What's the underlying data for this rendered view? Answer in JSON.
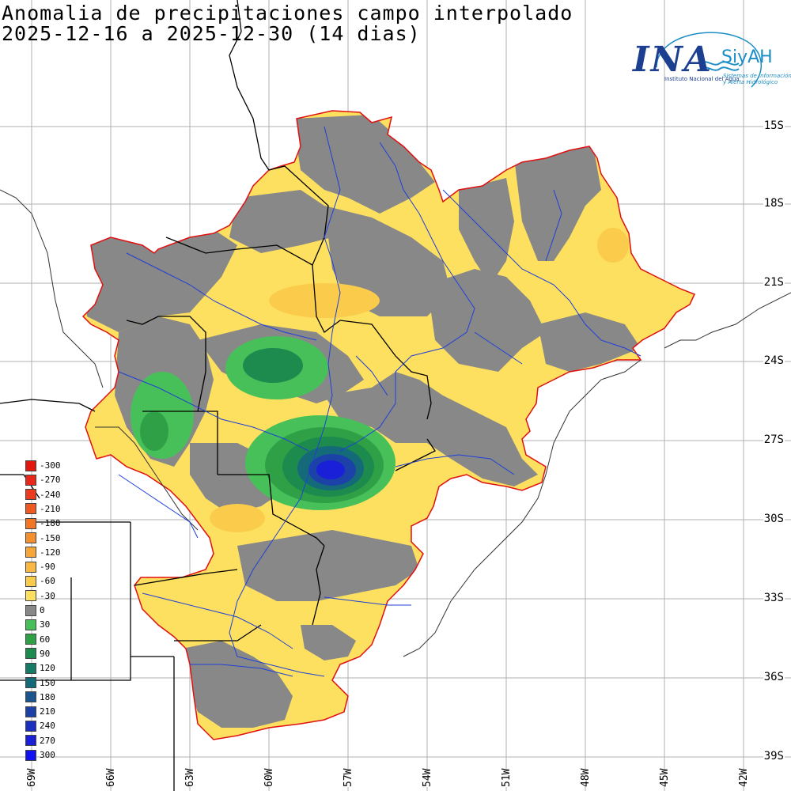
{
  "title": {
    "line1": "Anomalia de precipitaciones campo interpolado",
    "line2": "2025-12-16 a 2025-12-30 (14 dias)"
  },
  "logo": {
    "ina": "INA",
    "siyah": "SiyAH",
    "subtitle": "Instituto Nacional del Agua",
    "subtitle2": "Sistemas de Información y Alerta Hidrológico",
    "accent_color": "#1c3f8f",
    "wave_color": "#1b8ec4"
  },
  "latitude_labels": [
    "15S",
    "18S",
    "21S",
    "24S",
    "27S",
    "30S",
    "33S",
    "36S",
    "39S"
  ],
  "longitude_labels": [
    "69W",
    "66W",
    "63W",
    "60W",
    "57W",
    "54W",
    "51W",
    "48W",
    "45W",
    "42W"
  ],
  "legend": [
    {
      "label": "-300",
      "color": "#e3160f"
    },
    {
      "label": "-270",
      "color": "#e8261a"
    },
    {
      "label": "-240",
      "color": "#ec3b1e"
    },
    {
      "label": "-210",
      "color": "#f05a22"
    },
    {
      "label": "-180",
      "color": "#f37625"
    },
    {
      "label": "-150",
      "color": "#f59030"
    },
    {
      "label": "-120",
      "color": "#f7a63a"
    },
    {
      "label": "-90",
      "color": "#f9b843"
    },
    {
      "label": "-60",
      "color": "#fbcb4c"
    },
    {
      "label": "-30",
      "color": "#fde05f"
    },
    {
      "label": "0",
      "color": "#888888"
    },
    {
      "label": "30",
      "color": "#48c05a"
    },
    {
      "label": "60",
      "color": "#2fa046"
    },
    {
      "label": "90",
      "color": "#1d8a4e"
    },
    {
      "label": "120",
      "color": "#167a64"
    },
    {
      "label": "150",
      "color": "#146a78"
    },
    {
      "label": "180",
      "color": "#1a5590"
    },
    {
      "label": "210",
      "color": "#1c42a8"
    },
    {
      "label": "240",
      "color": "#1b30c0"
    },
    {
      "label": "270",
      "color": "#1a20d8"
    },
    {
      "label": "300",
      "color": "#1010f0"
    }
  ],
  "colors": {
    "basin_outline": "#e01010",
    "rivers": "#1f3fd8",
    "borders": "#000000",
    "gray_zero": "#888888",
    "yellow_neg30": "#fde05f",
    "orange_neg60": "#fbcb4c",
    "green_30": "#48c05a",
    "green_60": "#2fa046",
    "green_90": "#1d8a4e",
    "blue_max": "#1a20d8"
  }
}
